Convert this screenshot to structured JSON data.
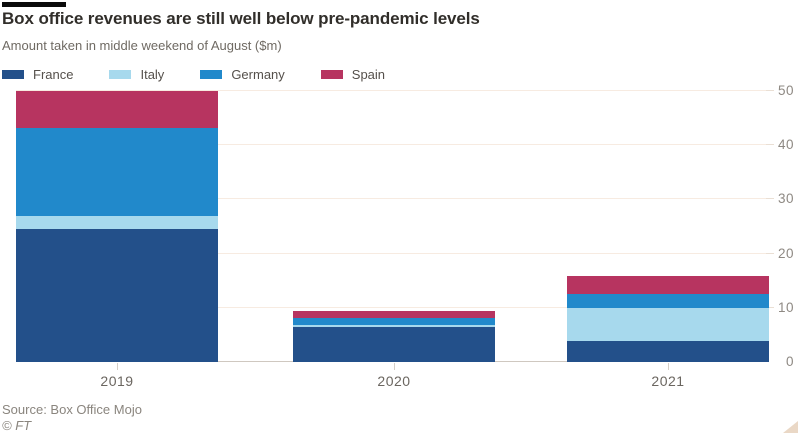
{
  "header": {
    "title": "Box office revenues are still well below pre-pandemic levels",
    "subtitle": "Amount taken in middle weekend of August ($m)"
  },
  "footer": {
    "source": "Source: Box Office Mojo",
    "credit": "© FT"
  },
  "colors": {
    "accent_bar": "#0a0a0a",
    "title_text": "#312e2a",
    "subtitle_text": "#6f6a63",
    "tick_text": "#8e8983",
    "footer_text": "#8a857e",
    "gridline": "#f7ebe1",
    "axis_line": "#cfc8c0",
    "resize_handle": "#ead8c6",
    "france": "#23508a",
    "italy": "#a7d9ed",
    "germany": "#2189cb",
    "spain": "#b73460"
  },
  "chart_data": {
    "type": "bar",
    "stacked": true,
    "title": "Box office revenues are still well below pre-pandemic levels",
    "subtitle": "Amount taken in middle weekend of August ($m)",
    "categories": [
      "2019",
      "2020",
      "2021"
    ],
    "series": [
      {
        "name": "France",
        "color": "#23508a",
        "values": [
          24.6,
          6.4,
          3.9
        ]
      },
      {
        "name": "Italy",
        "color": "#a7d9ed",
        "values": [
          2.3,
          0.4,
          6.1
        ]
      },
      {
        "name": "Germany",
        "color": "#2189cb",
        "values": [
          16.3,
          1.4,
          2.5
        ]
      },
      {
        "name": "Spain",
        "color": "#b73460",
        "values": [
          6.8,
          1.2,
          3.4
        ]
      }
    ],
    "totals": [
      50.0,
      9.4,
      15.9
    ],
    "xlabel": "",
    "ylabel": "",
    "ylim": [
      0,
      50
    ],
    "yticks": [
      0,
      10,
      20,
      30,
      40,
      50
    ],
    "yaxis_side": "right",
    "grid": true,
    "legend_position": "top"
  }
}
